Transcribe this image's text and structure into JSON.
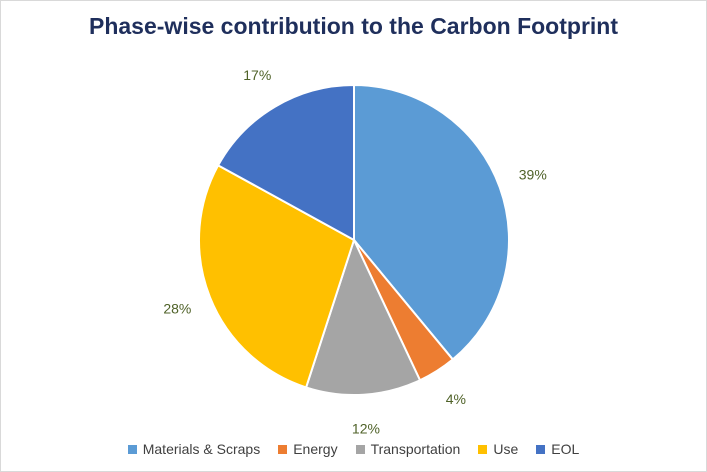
{
  "chart_data": {
    "type": "pie",
    "title": "Phase-wise contribution to the Carbon Footprint",
    "categories": [
      "Materials & Scraps",
      "Energy",
      "Transportation",
      "Use",
      "EOL"
    ],
    "values": [
      39,
      4,
      12,
      28,
      17
    ],
    "labels": [
      "39%",
      "4%",
      "12%",
      "28%",
      "17%"
    ],
    "colors": [
      "#5b9bd5",
      "#ed7d31",
      "#a5a5a5",
      "#ffc000",
      "#4472c4"
    ],
    "legend_position": "bottom",
    "start_angle_deg": 0,
    "direction": "clockwise"
  }
}
